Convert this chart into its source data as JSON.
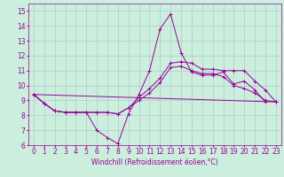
{
  "xlabel": "Windchill (Refroidissement éolien,°C)",
  "xlim": [
    -0.5,
    23.5
  ],
  "ylim": [
    6,
    15.5
  ],
  "xticks": [
    0,
    1,
    2,
    3,
    4,
    5,
    6,
    7,
    8,
    9,
    10,
    11,
    12,
    13,
    14,
    15,
    16,
    17,
    18,
    19,
    20,
    21,
    22,
    23
  ],
  "yticks": [
    6,
    7,
    8,
    9,
    10,
    11,
    12,
    13,
    14,
    15
  ],
  "bg_color": "#cceedd",
  "grid_color": "#aacccc",
  "line_color": "#990099",
  "lines": [
    {
      "x": [
        0,
        1,
        2,
        3,
        4,
        5,
        6,
        7,
        8,
        9,
        10,
        11,
        12,
        13,
        14,
        15,
        16,
        17,
        18,
        19,
        20,
        21,
        22
      ],
      "y": [
        9.4,
        8.8,
        8.3,
        8.2,
        8.2,
        8.2,
        7.0,
        6.5,
        6.1,
        8.1,
        9.4,
        11.0,
        13.8,
        14.8,
        12.2,
        10.9,
        10.7,
        10.7,
        10.9,
        10.1,
        10.3,
        9.7,
        8.9
      ]
    },
    {
      "x": [
        0,
        1,
        2,
        3,
        4,
        5,
        6,
        7,
        8,
        9,
        10,
        11,
        12,
        13,
        14,
        15,
        16,
        17,
        18,
        19,
        20,
        21,
        22,
        23
      ],
      "y": [
        9.4,
        8.8,
        8.3,
        8.2,
        8.2,
        8.2,
        8.2,
        8.2,
        8.1,
        8.5,
        9.2,
        9.8,
        10.5,
        11.5,
        11.6,
        11.5,
        11.1,
        11.1,
        11.0,
        11.0,
        11.0,
        10.3,
        9.7,
        8.9
      ]
    },
    {
      "x": [
        0,
        1,
        2,
        3,
        4,
        5,
        6,
        7,
        8,
        9,
        10,
        11,
        12,
        13,
        14,
        15,
        16,
        17,
        18,
        19,
        20,
        21,
        22,
        23
      ],
      "y": [
        9.4,
        8.8,
        8.3,
        8.2,
        8.2,
        8.2,
        8.2,
        8.2,
        8.1,
        8.5,
        9.0,
        9.5,
        10.2,
        11.2,
        11.3,
        11.0,
        10.8,
        10.8,
        10.6,
        10.0,
        9.8,
        9.5,
        9.0,
        8.9
      ]
    },
    {
      "x": [
        0,
        23
      ],
      "y": [
        9.4,
        8.9
      ]
    }
  ],
  "xlabel_fontsize": 5.5,
  "tick_fontsize": 5.5
}
